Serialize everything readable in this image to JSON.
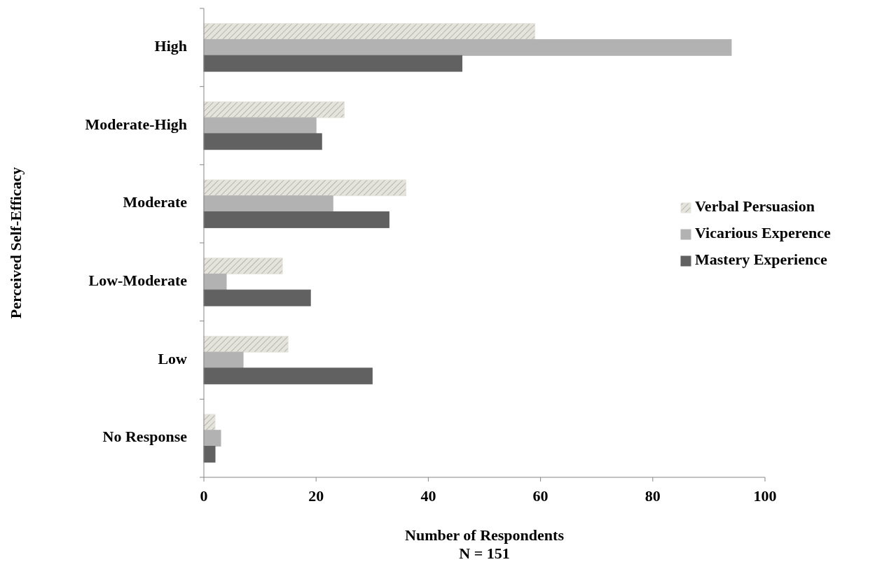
{
  "chart_data": {
    "type": "bar",
    "orientation": "horizontal",
    "xlabel": "Number of Respondents",
    "ylabel": "Perceived Self-Efficacy",
    "annotations": [
      "N = 151"
    ],
    "categories": [
      "High",
      "Moderate-High",
      "Moderate",
      "Low-Moderate",
      "Low",
      "No Response"
    ],
    "series": [
      {
        "name": "Verbal Persuasion",
        "color": "#e4e4dc",
        "values": [
          59,
          25,
          36,
          14,
          15,
          2
        ]
      },
      {
        "name": "Vicarious Experence",
        "color": "#b2b2b2",
        "values": [
          94,
          20,
          23,
          4,
          7,
          3
        ]
      },
      {
        "name": "Mastery Experience",
        "color": "#616161",
        "values": [
          46,
          21,
          33,
          19,
          30,
          2
        ]
      }
    ],
    "xlim": [
      0,
      100
    ],
    "xticks": [
      0,
      20,
      40,
      60,
      80,
      100
    ],
    "legend": "right",
    "grid": false
  }
}
